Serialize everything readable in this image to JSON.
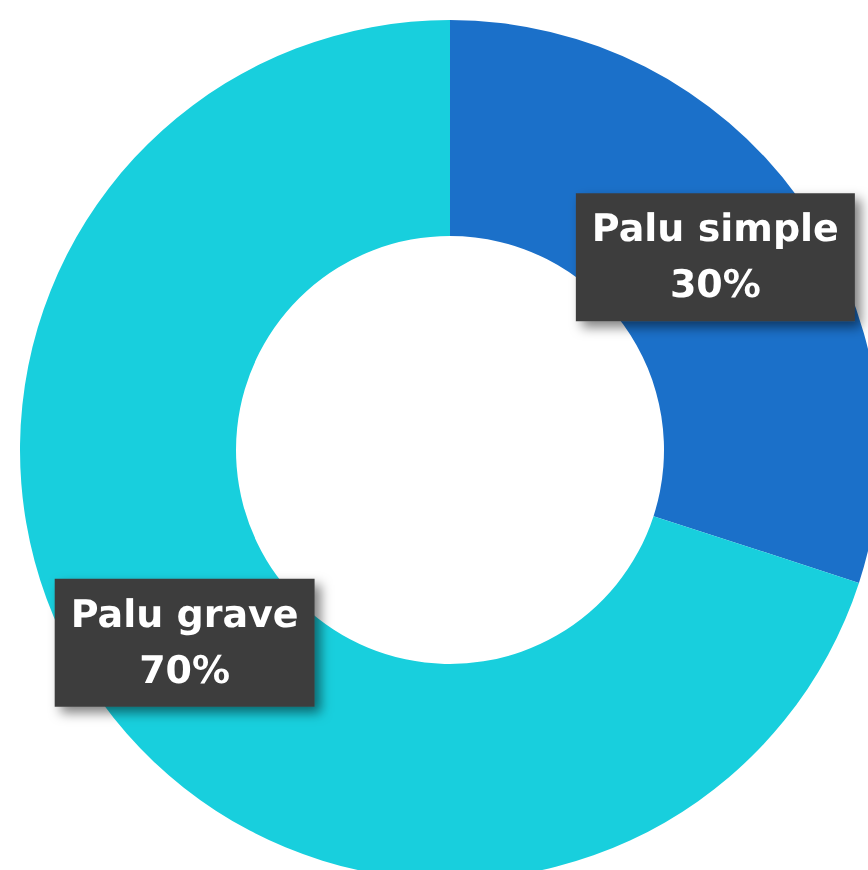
{
  "chart_data": {
    "type": "donut",
    "categories": [
      "Palu simple",
      "Palu grave"
    ],
    "values": [
      30,
      70
    ],
    "colors": [
      "#1b70c9",
      "#18cfdd"
    ],
    "value_labels": [
      "30%",
      "70%"
    ],
    "legend": false
  }
}
